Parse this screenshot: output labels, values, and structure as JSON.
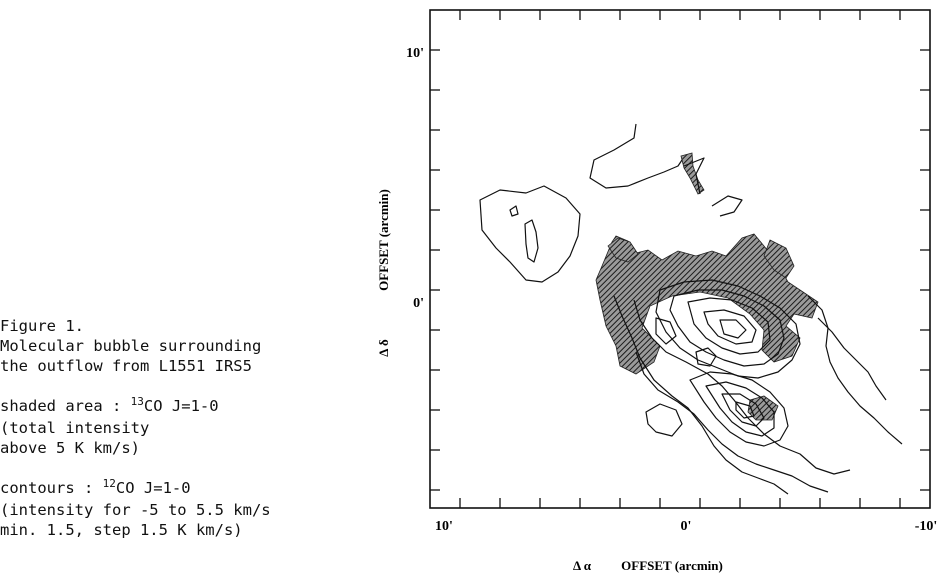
{
  "caption": {
    "title": "Figure 1.",
    "desc_line1": "Molecular bubble surrounding",
    "desc_line2": "the outflow from L1551 IRS5",
    "shaded_prefix": "shaded area : ",
    "shaded_isotope": "13",
    "shaded_species": "CO J=1-0",
    "shaded_line2": "(total intensity",
    "shaded_line3": "above 5 K km/s)",
    "contours_prefix": "contours : ",
    "contours_isotope": "12",
    "contours_species": "CO J=1-0",
    "contours_line2": "(intensity for -5 to 5.5 km/s",
    "contours_line3": "min. 1.5, step 1.5 K km/s)"
  },
  "plot": {
    "xlabel_symbol": "Δ α",
    "xlabel_text": "OFFSET (arcmin)",
    "ylabel_symbol": "Δ δ",
    "ylabel_text": "OFFSET (arcmin)",
    "xticks": [
      "10'",
      "0'",
      "-10'"
    ],
    "yticks": [
      "10'",
      "0'"
    ]
  }
}
